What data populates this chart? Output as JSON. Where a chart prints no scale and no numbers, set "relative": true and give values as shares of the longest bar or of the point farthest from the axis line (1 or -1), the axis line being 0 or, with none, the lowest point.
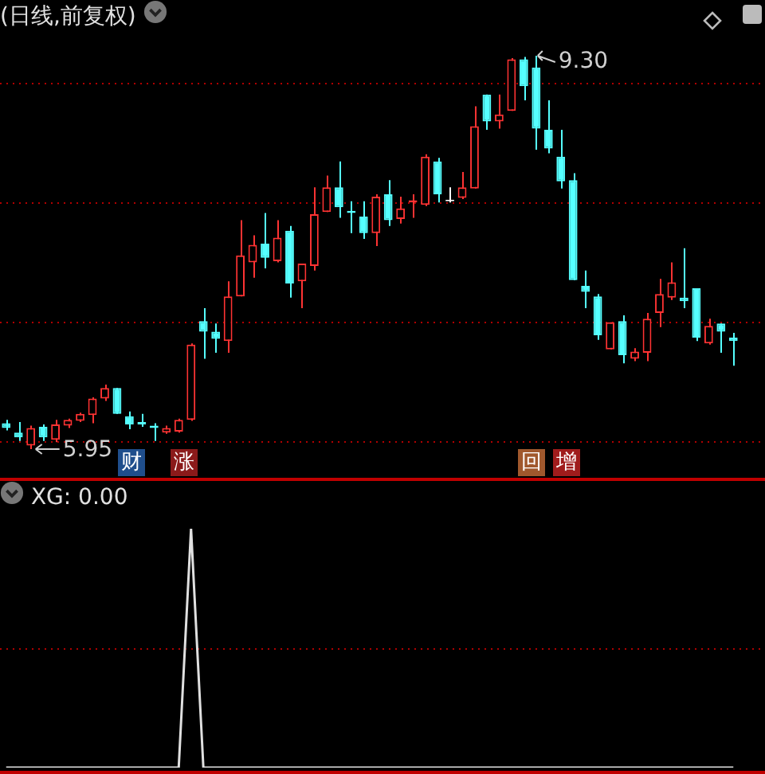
{
  "chart_data": [
    {
      "type": "candlestick",
      "title": "(日线,前复权)",
      "categories": [
        null,
        null,
        null,
        null,
        null,
        null,
        null,
        null,
        null,
        null,
        null,
        null,
        null,
        null,
        null,
        null,
        null,
        null,
        null,
        null,
        null,
        null,
        null,
        null,
        null,
        null,
        null,
        null,
        null,
        null,
        null,
        null,
        null,
        null,
        null,
        null,
        null,
        null,
        null,
        null,
        null,
        null,
        null,
        null,
        null,
        null,
        null,
        null,
        null,
        null,
        null,
        null,
        null,
        null,
        null,
        null,
        null,
        null,
        null,
        null
      ],
      "ohlc": [
        [
          6.17,
          6.2,
          6.11,
          6.13
        ],
        [
          6.09,
          6.18,
          6.02,
          6.05
        ],
        [
          5.98,
          6.15,
          5.95,
          6.13
        ],
        [
          6.14,
          6.16,
          6.02,
          6.05
        ],
        [
          6.03,
          6.2,
          6.01,
          6.16
        ],
        [
          6.15,
          6.21,
          6.13,
          6.2
        ],
        [
          6.19,
          6.26,
          6.18,
          6.25
        ],
        [
          6.24,
          6.39,
          6.17,
          6.38
        ],
        [
          6.38,
          6.5,
          6.36,
          6.47
        ],
        [
          6.47,
          6.47,
          6.25,
          6.25
        ],
        [
          6.23,
          6.27,
          6.12,
          6.16
        ],
        [
          6.18,
          6.25,
          6.14,
          6.16
        ],
        [
          6.15,
          6.17,
          6.02,
          6.13
        ],
        [
          6.09,
          6.15,
          6.08,
          6.13
        ],
        [
          6.1,
          6.21,
          6.09,
          6.2
        ],
        [
          6.2,
          6.85,
          6.19,
          6.84
        ],
        [
          7.04,
          7.15,
          6.72,
          6.95
        ],
        [
          6.95,
          7.02,
          6.77,
          6.89
        ],
        [
          6.87,
          7.38,
          6.77,
          7.25
        ],
        [
          7.25,
          7.9,
          7.25,
          7.6
        ],
        [
          7.54,
          7.77,
          7.41,
          7.69
        ],
        [
          7.7,
          7.96,
          7.49,
          7.58
        ],
        [
          7.55,
          7.9,
          7.54,
          7.75
        ],
        [
          7.81,
          7.85,
          7.24,
          7.36
        ],
        [
          7.38,
          7.53,
          7.15,
          7.53
        ],
        [
          7.51,
          8.18,
          7.47,
          7.95
        ],
        [
          7.97,
          8.28,
          7.97,
          8.18
        ],
        [
          8.18,
          8.4,
          7.92,
          8.01
        ],
        [
          7.98,
          8.06,
          7.79,
          7.96
        ],
        [
          7.93,
          8.06,
          7.74,
          7.79
        ],
        [
          7.79,
          8.12,
          7.68,
          8.1
        ],
        [
          8.12,
          8.24,
          7.85,
          7.9
        ],
        [
          7.91,
          8.1,
          7.87,
          8.0
        ],
        [
          8.05,
          8.12,
          7.92,
          8.07
        ],
        [
          8.03,
          8.46,
          8.02,
          8.44
        ],
        [
          8.4,
          8.43,
          8.05,
          8.12
        ],
        [
          8.06,
          8.18,
          8.05,
          8.06
        ],
        [
          8.09,
          8.31,
          8.08,
          8.18
        ],
        [
          8.17,
          8.87,
          8.17,
          8.7
        ],
        [
          8.97,
          8.97,
          8.67,
          8.74
        ],
        [
          8.74,
          8.97,
          8.68,
          8.8
        ],
        [
          8.83,
          9.28,
          8.83,
          9.27
        ],
        [
          9.27,
          9.29,
          8.92,
          9.04
        ],
        [
          9.2,
          9.3,
          8.5,
          8.68
        ],
        [
          8.67,
          8.92,
          8.47,
          8.51
        ],
        [
          8.44,
          8.67,
          8.17,
          8.23
        ],
        [
          8.24,
          8.3,
          7.39,
          7.39
        ],
        [
          7.34,
          7.47,
          7.15,
          7.29
        ],
        [
          7.25,
          7.27,
          6.88,
          6.92
        ],
        [
          6.8,
          7.03,
          6.8,
          7.03
        ],
        [
          7.04,
          7.09,
          6.68,
          6.75
        ],
        [
          6.72,
          6.81,
          6.7,
          6.78
        ],
        [
          6.77,
          7.11,
          6.7,
          7.06
        ],
        [
          7.11,
          7.4,
          6.99,
          7.27
        ],
        [
          7.24,
          7.54,
          7.22,
          7.37
        ],
        [
          7.24,
          7.66,
          7.15,
          7.21
        ],
        [
          7.32,
          7.32,
          6.87,
          6.9
        ],
        [
          6.85,
          7.06,
          6.84,
          7.0
        ],
        [
          7.02,
          7.02,
          6.77,
          6.95
        ],
        [
          6.9,
          6.94,
          6.66,
          6.87
        ]
      ],
      "colors": [
        "#55ffff",
        "#55ffff",
        "#ff3333",
        "#55ffff",
        "#ff3333",
        "#ff3333",
        "#ff3333",
        "#ff3333",
        "#ff3333",
        "#55ffff",
        "#55ffff",
        "#55ffff",
        "#55ffff",
        "#ff3333",
        "#ff3333",
        "#ff3333",
        "#55ffff",
        "#55ffff",
        "#ff3333",
        "#ff3333",
        "#ff3333",
        "#55ffff",
        "#ff3333",
        "#55ffff",
        "#ff3333",
        "#ff3333",
        "#ff3333",
        "#55ffff",
        "#55ffff",
        "#55ffff",
        "#ff3333",
        "#55ffff",
        "#ff3333",
        "#ff3333",
        "#ff3333",
        "#55ffff",
        "#ffffff",
        "#ff3333",
        "#ff3333",
        "#55ffff",
        "#ff3333",
        "#ff3333",
        "#55ffff",
        "#55ffff",
        "#55ffff",
        "#55ffff",
        "#55ffff",
        "#55ffff",
        "#55ffff",
        "#ff3333",
        "#55ffff",
        "#ff3333",
        "#ff3333",
        "#ff3333",
        "#ff3333",
        "#55ffff",
        "#55ffff",
        "#ff3333",
        "#55ffff",
        "#55ffff"
      ],
      "legend": false,
      "ref_lines": [
        {
          "axis": "y",
          "value": 9.07,
          "color": "#b00000",
          "line_style": "dotted"
        },
        {
          "axis": "y",
          "value": 8.05,
          "color": "#b00000",
          "line_style": "dotted"
        },
        {
          "axis": "y",
          "value": 7.04,
          "color": "#b00000",
          "line_style": "dotted"
        },
        {
          "axis": "y",
          "value": 6.02,
          "color": "#b00000",
          "line_style": "dotted"
        }
      ],
      "annotations": [
        "9.30",
        "5.95",
        "财",
        "涨",
        "回",
        "增"
      ]
    },
    {
      "type": "line",
      "title": "XG: 0.00",
      "relative": true,
      "categories": [
        null,
        null,
        null,
        null,
        null,
        null,
        null,
        null,
        null,
        null,
        null,
        null,
        null,
        null,
        null,
        null,
        null,
        null,
        null,
        null,
        null,
        null,
        null,
        null,
        null,
        null,
        null,
        null,
        null,
        null,
        null,
        null,
        null,
        null,
        null,
        null,
        null,
        null,
        null,
        null,
        null,
        null,
        null,
        null,
        null,
        null,
        null,
        null,
        null,
        null,
        null,
        null,
        null,
        null,
        null,
        null,
        null,
        null,
        null,
        null
      ],
      "series": [
        {
          "color": "#e0e0e0",
          "values": [
            0,
            0,
            0,
            0,
            0,
            0,
            0,
            0,
            0,
            0,
            0,
            0,
            0,
            0,
            0,
            1,
            0,
            0,
            0,
            0,
            0,
            0,
            0,
            0,
            0,
            0,
            0,
            0,
            0,
            0,
            0,
            0,
            0,
            0,
            0,
            0,
            0,
            0,
            0,
            0,
            0,
            0,
            0,
            0,
            0,
            0,
            0,
            0,
            0,
            0,
            0,
            0,
            0,
            0,
            0,
            0,
            0,
            0,
            0,
            0
          ]
        }
      ],
      "ref_lines": [
        {
          "axis": "y",
          "value": 0.5,
          "color": "#b00000",
          "line_style": "dotted"
        }
      ]
    }
  ]
}
